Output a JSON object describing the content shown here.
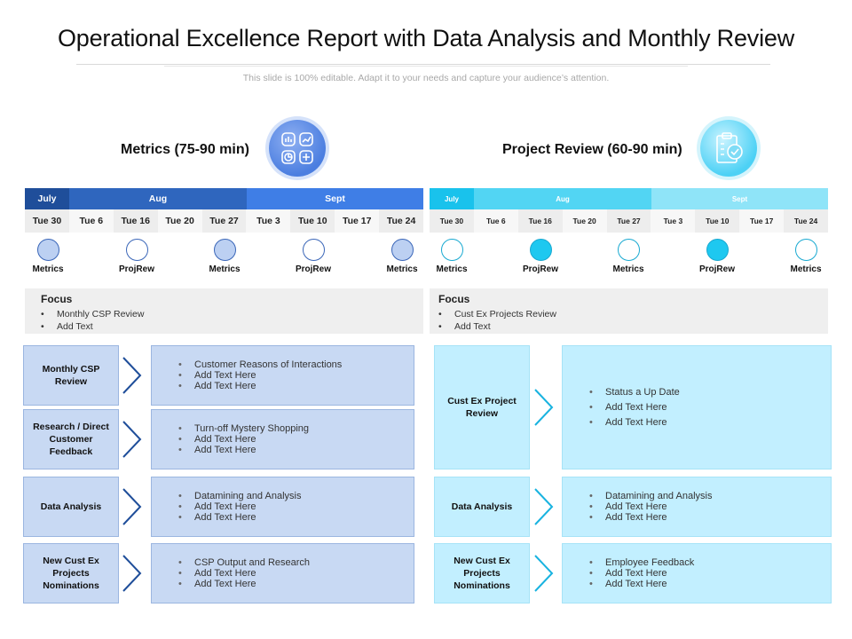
{
  "title": "Operational Excellence Report with Data Analysis and Monthly Review",
  "subtitle": "This slide is 100% editable. Adapt it to your needs and capture your audience’s attention.",
  "colors": {
    "left_dark": "#1f4e9a",
    "left_mid": "#2f66be",
    "left_light": "#3f7ee6",
    "right_dark": "#19c2ec",
    "right_mid": "#52d5f3",
    "right_light": "#8fe4f8",
    "dot_blue_fill": "#bcd0f2",
    "dot_blue_stroke": "#3a66b8",
    "dot_cyan_fill": "#1ec8f0",
    "dot_cyan_stroke": "#18a9d1"
  },
  "left": {
    "heading": "Metrics (75-90 min)",
    "icon": "metrics-dashboard-icon",
    "months": [
      "July",
      "Aug",
      "Sept"
    ],
    "dates": [
      "Tue 30",
      "Tue 6",
      "Tue 16",
      "Tue 20",
      "Tue 27",
      "Tue 3",
      "Tue 10",
      "Tue 17",
      "Tue 24"
    ],
    "milestones": [
      "Metrics",
      "ProjRew",
      "Metrics",
      "ProjRew",
      "Metrics"
    ],
    "focus": {
      "heading": "Focus",
      "items": [
        "Monthly CSP Review",
        "Add Text"
      ]
    },
    "rows": [
      {
        "label": "Monthly CSP Review",
        "items": [
          "Customer Reasons of Interactions",
          "Add Text Here",
          "Add Text Here"
        ]
      },
      {
        "label": "Research / Direct Customer Feedback",
        "items": [
          "Turn-off Mystery Shopping",
          "Add Text Here",
          "Add Text Here"
        ]
      },
      {
        "label": "Data Analysis",
        "items": [
          "Datamining  and Analysis",
          "Add Text Here",
          "Add Text Here"
        ]
      },
      {
        "label": "New Cust Ex Projects Nominations",
        "items": [
          "CSP Output and Research",
          "Add Text Here",
          "Add Text Here"
        ]
      }
    ]
  },
  "right": {
    "heading": "Project Review (60-90 min)",
    "icon": "clipboard-check-icon",
    "months": [
      "July",
      "Aug",
      "Sept"
    ],
    "dates": [
      "Tue 30",
      "Tue 6",
      "Tue 16",
      "Tue 20",
      "Tue 27",
      "Tue 3",
      "Tue 10",
      "Tue 17",
      "Tue 24"
    ],
    "milestones": [
      "Metrics",
      "ProjRew",
      "Metrics",
      "ProjRew",
      "Metrics"
    ],
    "focus": {
      "heading": "Focus",
      "items": [
        "Cust Ex Projects Review",
        "Add Text"
      ]
    },
    "rows": [
      {
        "label": "Cust Ex Project Review",
        "items": [
          "Status a Up Date",
          "Add Text Here",
          "Add Text Here"
        ]
      },
      {
        "label": "Data Analysis",
        "items": [
          "Datamining  and Analysis",
          "Add Text Here",
          "Add Text Here"
        ]
      },
      {
        "label": "New Cust Ex Projects Nominations",
        "items": [
          "Employee Feedback",
          "Add Text Here",
          "Add Text Here"
        ]
      }
    ]
  }
}
